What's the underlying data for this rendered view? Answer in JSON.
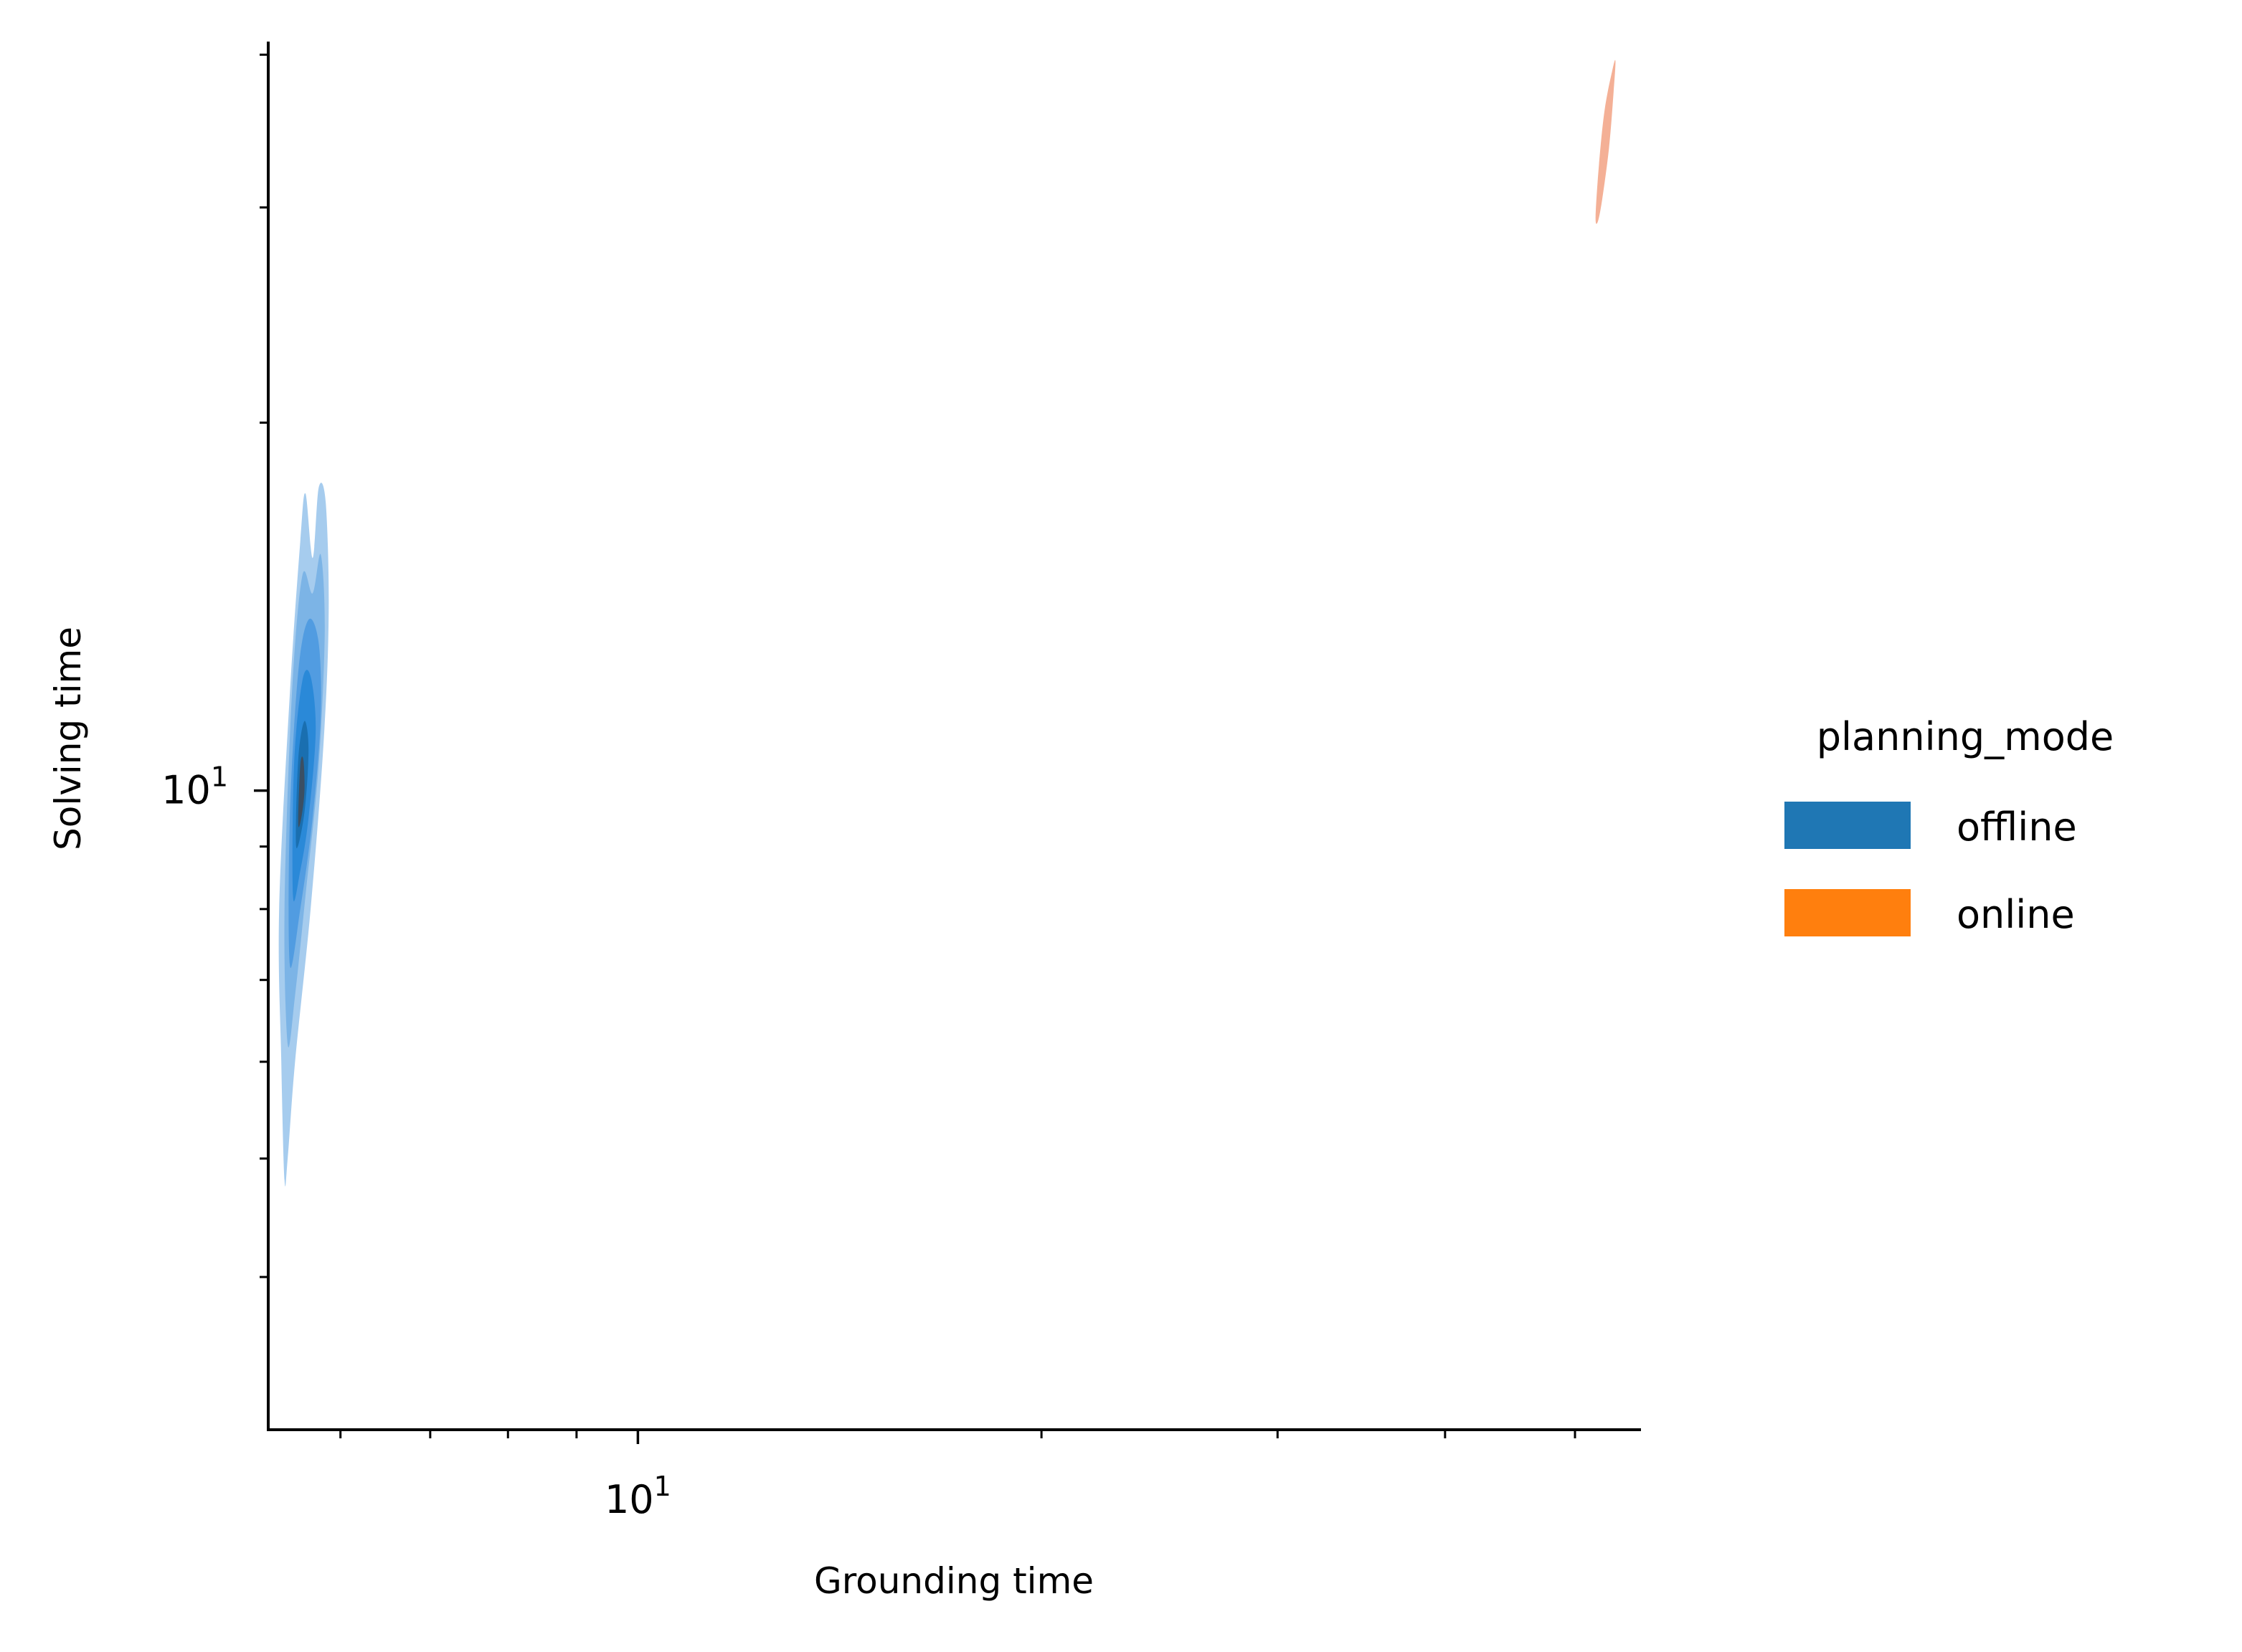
{
  "chart_data": {
    "type": "kde-contour",
    "xlabel": "Grounding time",
    "ylabel": "Solving time",
    "xscale": "log",
    "yscale": "log",
    "xlim": [
      5.3,
      56
    ],
    "ylim": [
      3.0,
      41
    ],
    "x_tick_labels": [
      {
        "value": 10,
        "base": "10",
        "exp": "1"
      }
    ],
    "y_tick_labels": [
      {
        "value": 10,
        "base": "10",
        "exp": "1"
      }
    ],
    "x_minor_ticks": [
      6,
      7,
      8,
      9,
      20,
      30,
      40,
      50
    ],
    "y_minor_ticks": [
      4,
      5,
      6,
      7,
      8,
      9,
      20,
      30,
      40
    ],
    "legend": {
      "title": "planning_mode",
      "placement": "right",
      "entries": [
        {
          "label": "offline",
          "color": "#1f77b4"
        },
        {
          "label": "online",
          "color": "#ff7f0e"
        }
      ]
    },
    "series": [
      {
        "name": "offline",
        "color": "#1f77b4",
        "contours": [
          {
            "level": 1,
            "color": "#9cc7ec",
            "opacity": 0.9,
            "points": [
              [
                5.45,
                4.8
              ],
              [
                5.42,
                6.0
              ],
              [
                5.4,
                8.0
              ],
              [
                5.5,
                12.0
              ],
              [
                5.6,
                16.0
              ],
              [
                5.65,
                17.5
              ],
              [
                5.72,
                15.5
              ],
              [
                5.78,
                17.7
              ],
              [
                5.85,
                17.2
              ],
              [
                5.88,
                14.0
              ],
              [
                5.83,
                11.0
              ],
              [
                5.7,
                8.0
              ],
              [
                5.55,
                6.0
              ],
              [
                5.48,
                5.0
              ]
            ]
          },
          {
            "level": 2,
            "color": "#78b1e4",
            "opacity": 0.9,
            "points": [
              [
                5.48,
                6.2
              ],
              [
                5.45,
                8.0
              ],
              [
                5.52,
                12.0
              ],
              [
                5.62,
                15.0
              ],
              [
                5.72,
                14.5
              ],
              [
                5.8,
                15.6
              ],
              [
                5.84,
                13.5
              ],
              [
                5.78,
                10.5
              ],
              [
                5.65,
                8.2
              ],
              [
                5.55,
                6.8
              ]
            ]
          },
          {
            "level": 3,
            "color": "#4f9be0",
            "opacity": 0.95,
            "points": [
              [
                5.5,
                7.2
              ],
              [
                5.5,
                9.5
              ],
              [
                5.58,
                12.5
              ],
              [
                5.68,
                13.8
              ],
              [
                5.78,
                13.2
              ],
              [
                5.8,
                11.5
              ],
              [
                5.72,
                9.5
              ],
              [
                5.6,
                8.0
              ]
            ]
          },
          {
            "level": 4,
            "color": "#2a89d8",
            "opacity": 1.0,
            "points": [
              [
                5.53,
                8.2
              ],
              [
                5.54,
                10.5
              ],
              [
                5.62,
                12.3
              ],
              [
                5.7,
                12.4
              ],
              [
                5.75,
                11.2
              ],
              [
                5.68,
                9.5
              ],
              [
                5.6,
                8.6
              ]
            ]
          },
          {
            "level": 5,
            "color": "#1a6fb0",
            "opacity": 1.0,
            "points": [
              [
                5.56,
                9.0
              ],
              [
                5.58,
                10.6
              ],
              [
                5.64,
                11.4
              ],
              [
                5.68,
                10.8
              ],
              [
                5.64,
                9.6
              ]
            ]
          },
          {
            "level": 6,
            "color": "#3b4f63",
            "opacity": 1.0,
            "points": [
              [
                5.58,
                9.4
              ],
              [
                5.6,
                10.5
              ],
              [
                5.63,
                10.6
              ],
              [
                5.64,
                10.0
              ],
              [
                5.61,
                9.5
              ]
            ]
          }
        ]
      },
      {
        "name": "online",
        "color": "#ff7f0e",
        "contours": [
          {
            "level": 1,
            "color": "#f4b096",
            "opacity": 1.0,
            "points": [
              [
                51.8,
                29.5
              ],
              [
                52.1,
                32.5
              ],
              [
                52.6,
                36.0
              ],
              [
                53.3,
                38.8
              ],
              [
                53.6,
                39.5
              ],
              [
                53.4,
                37.0
              ],
              [
                53.0,
                33.5
              ],
              [
                52.4,
                30.5
              ],
              [
                52.0,
                29.2
              ]
            ]
          }
        ]
      }
    ]
  }
}
